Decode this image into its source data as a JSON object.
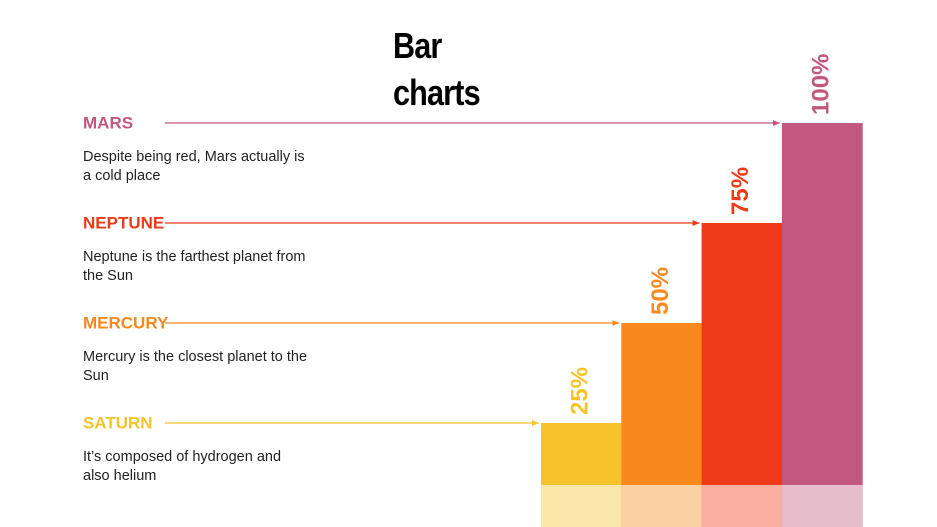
{
  "chart_data": {
    "type": "bar",
    "title": "Bar charts",
    "categories": [
      "SATURN",
      "MERCURY",
      "NEPTUNE",
      "MARS"
    ],
    "descriptions": [
      "It’s composed of hydrogen and also helium",
      "Mercury is the closest planet to the Sun",
      "Neptune is the farthest planet from the Sun",
      "Despite being red, Mars actually is a cold place"
    ],
    "values": [
      25,
      50,
      75,
      100
    ],
    "value_labels": [
      "25%",
      "50%",
      "75%",
      "100%"
    ],
    "colors": [
      "#f5c42c",
      "#f7891f",
      "#ef3a19",
      "#c2587e"
    ]
  }
}
